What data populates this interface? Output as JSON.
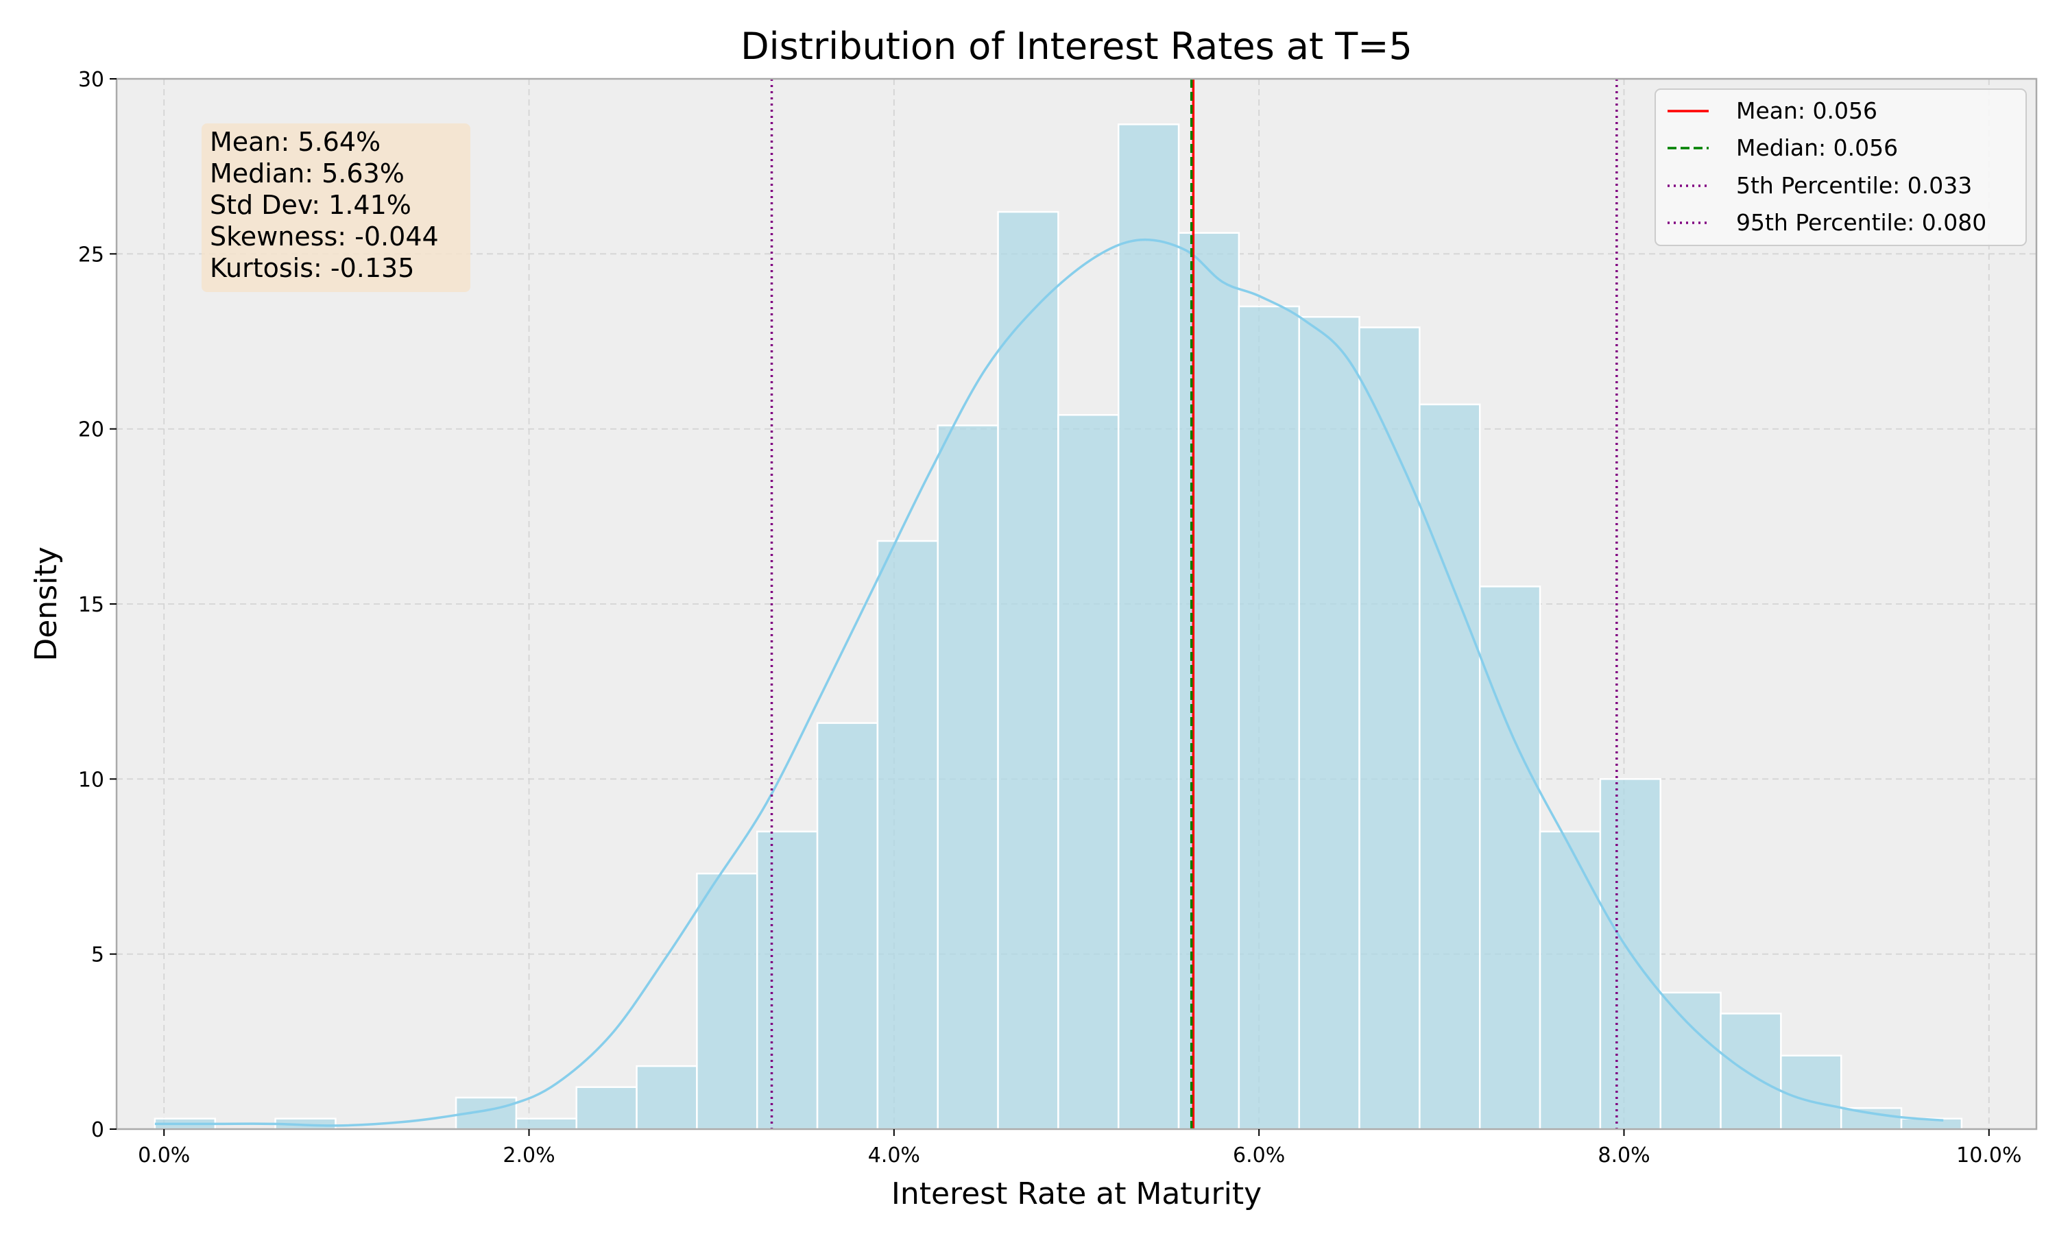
{
  "chart_data": {
    "type": "bar",
    "title": "Distribution of Interest Rates at T=5",
    "xlabel": "Interest Rate at Maturity",
    "ylabel": "Density",
    "xlim": [
      -0.0026,
      0.1026
    ],
    "ylim": [
      0,
      30
    ],
    "grid": true,
    "legend_position": "top-right",
    "x_ticks": [
      {
        "value": 0.0,
        "label": "0.0%"
      },
      {
        "value": 0.02,
        "label": "2.0%"
      },
      {
        "value": 0.04,
        "label": "4.0%"
      },
      {
        "value": 0.06,
        "label": "6.0%"
      },
      {
        "value": 0.08,
        "label": "8.0%"
      },
      {
        "value": 0.1,
        "label": "10.0%"
      }
    ],
    "y_ticks": [
      {
        "value": 0,
        "label": "0"
      },
      {
        "value": 5,
        "label": "5"
      },
      {
        "value": 10,
        "label": "10"
      },
      {
        "value": 15,
        "label": "15"
      },
      {
        "value": 20,
        "label": "20"
      },
      {
        "value": 25,
        "label": "25"
      },
      {
        "value": 30,
        "label": "30"
      }
    ],
    "bin_edges": [
      -0.0005,
      0.0028,
      0.0061,
      0.0094,
      0.0127,
      0.016,
      0.0193,
      0.0226,
      0.0259,
      0.0292,
      0.0325,
      0.0358,
      0.0391,
      0.0424,
      0.0457,
      0.049,
      0.0523,
      0.0556,
      0.0589,
      0.0622,
      0.0655,
      0.0688,
      0.0721,
      0.0754,
      0.0787,
      0.082,
      0.0853,
      0.0886,
      0.0919,
      0.0952,
      0.0985
    ],
    "densities": [
      0.3,
      0.0,
      0.3,
      0.0,
      0.0,
      0.9,
      0.3,
      1.2,
      1.8,
      7.3,
      8.5,
      11.6,
      16.8,
      20.1,
      26.2,
      20.4,
      28.7,
      25.6,
      23.5,
      23.2,
      22.9,
      20.7,
      15.5,
      8.5,
      10.0,
      3.9,
      3.3,
      2.1,
      0.6,
      0.3
    ],
    "bar_color": "#add8e6",
    "kde": {
      "color": "#87ceeb",
      "x": [
        -0.0005,
        0.0028,
        0.006,
        0.0095,
        0.013,
        0.016,
        0.019,
        0.0215,
        0.0245,
        0.0275,
        0.03,
        0.033,
        0.036,
        0.039,
        0.042,
        0.045,
        0.048,
        0.051,
        0.0535,
        0.056,
        0.058,
        0.06,
        0.0625,
        0.065,
        0.068,
        0.071,
        0.074,
        0.077,
        0.08,
        0.083,
        0.086,
        0.089,
        0.092,
        0.095,
        0.0975
      ],
      "y": [
        0.15,
        0.15,
        0.15,
        0.1,
        0.2,
        0.4,
        0.7,
        1.3,
        2.7,
        4.9,
        6.9,
        9.3,
        12.4,
        15.6,
        18.8,
        21.7,
        23.6,
        24.9,
        25.4,
        25.1,
        24.2,
        23.8,
        23.1,
        21.9,
        18.8,
        15.0,
        11.1,
        8.1,
        5.3,
        3.3,
        1.9,
        1.0,
        0.6,
        0.35,
        0.25
      ]
    },
    "reference_lines": [
      {
        "name": "Mean: 0.056",
        "x": 0.0564,
        "color": "#ff0000",
        "style": "solid"
      },
      {
        "name": "Median: 0.056",
        "x": 0.0563,
        "color": "#008000",
        "style": "dashed"
      },
      {
        "name": "5th Percentile: 0.033",
        "x": 0.0333,
        "color": "#800080",
        "style": "dotted"
      },
      {
        "name": "95th Percentile: 0.080",
        "x": 0.0796,
        "color": "#800080",
        "style": "dotted"
      }
    ],
    "stats_box": [
      "Mean: 5.64%",
      "Median: 5.63%",
      "Std Dev: 1.41%",
      "Skewness: -0.044",
      "Kurtosis: -0.135"
    ],
    "colors": {
      "plot_background": "#eeeeee",
      "grid": "#d4d4d4",
      "stats_box": "#f4e3cc",
      "axis": "#aaaaaa"
    }
  }
}
